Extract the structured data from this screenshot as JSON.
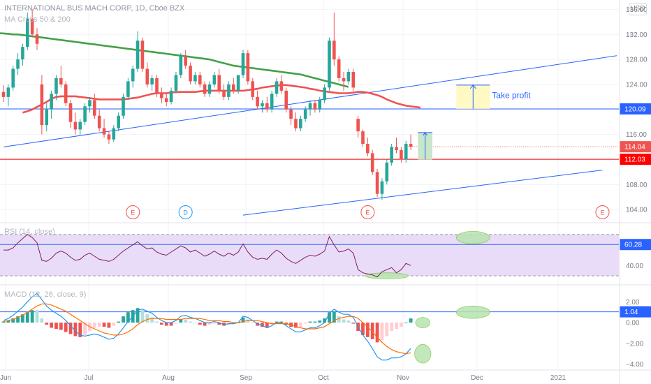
{
  "header": {
    "title": "INTERNATIONAL BUS MACH CORP, 1D, Cboe BZX",
    "ma_indicator": "MA Cross 50 & 200",
    "rsi_indicator": "RSI (14, close)",
    "macd_indicator": "MACD (12, 26, close, 9)",
    "currency_button": "USD"
  },
  "colors": {
    "up": "#26a69a",
    "down": "#ef5350",
    "ma50": "#ef5350",
    "ma200": "#43a047",
    "trend": "#2962ff",
    "rsi_line": "#7e1f5f",
    "rsi_band": "#e9dcf8",
    "macd_line": "#2196f3",
    "signal_line": "#ff6d00",
    "hist_up": "#26a69a",
    "hist_down": "#ef5350",
    "highlight": "#b7e4b0"
  },
  "chart_data": [
    {
      "type": "candlestick",
      "title": "INTERNATIONAL BUS MACH CORP, 1D, Cboe BZX",
      "x": [
        "Jun",
        "Jul",
        "Aug",
        "Sep",
        "Oct",
        "Nov",
        "Dec",
        "2021"
      ],
      "y_ticks": [
        104.0,
        108.0,
        112.0,
        116.0,
        120.0,
        124.0,
        128.0,
        132.0,
        136.0
      ],
      "ylim": [
        102.0,
        137.5
      ],
      "price_labels": [
        {
          "value": 120.09,
          "text": "120.09",
          "color": "#2962ff"
        },
        {
          "value": 114.04,
          "text": "114.04",
          "color": "#ef5350"
        },
        {
          "value": 112.03,
          "text": "112.03",
          "color": "#ff0000"
        }
      ],
      "candles": [
        [
          122.8,
          123.9,
          121.2,
          122.0
        ],
        [
          122.0,
          124.0,
          120.5,
          123.5
        ],
        [
          123.5,
          127.0,
          123.0,
          126.5
        ],
        [
          126.5,
          129.0,
          125.5,
          128.0
        ],
        [
          128.0,
          130.5,
          127.0,
          130.0
        ],
        [
          130.0,
          135.5,
          129.5,
          134.5
        ],
        [
          134.5,
          136.0,
          131.5,
          132.0
        ],
        [
          132.0,
          133.0,
          129.5,
          130.5
        ],
        [
          124.0,
          125.5,
          116.0,
          117.5
        ],
        [
          117.5,
          121.0,
          116.5,
          120.0
        ],
        [
          120.0,
          123.0,
          118.5,
          122.5
        ],
        [
          122.5,
          125.5,
          121.5,
          125.0
        ],
        [
          125.0,
          127.0,
          123.5,
          124.0
        ],
        [
          124.0,
          124.5,
          120.5,
          121.0
        ],
        [
          121.0,
          121.5,
          117.0,
          118.0
        ],
        [
          118.0,
          119.5,
          116.0,
          116.8
        ],
        [
          116.8,
          118.5,
          116.0,
          118.0
        ],
        [
          118.0,
          121.0,
          117.5,
          120.5
        ],
        [
          120.5,
          122.0,
          119.5,
          121.5
        ],
        [
          121.5,
          122.5,
          118.5,
          119.0
        ],
        [
          119.0,
          120.0,
          116.5,
          117.0
        ],
        [
          117.0,
          118.5,
          115.5,
          116.0
        ],
        [
          116.0,
          116.5,
          114.5,
          115.2
        ],
        [
          115.2,
          117.5,
          114.8,
          117.0
        ],
        [
          117.0,
          119.5,
          116.5,
          119.0
        ],
        [
          119.0,
          122.5,
          118.5,
          122.0
        ],
        [
          122.0,
          125.0,
          121.5,
          124.5
        ],
        [
          124.5,
          127.0,
          123.5,
          126.5
        ],
        [
          126.5,
          132.5,
          126.0,
          131.0
        ],
        [
          131.0,
          131.5,
          126.0,
          126.5
        ],
        [
          126.5,
          127.5,
          123.5,
          124.0
        ],
        [
          124.0,
          125.5,
          123.0,
          125.0
        ],
        [
          125.0,
          125.5,
          122.0,
          122.5
        ],
        [
          122.5,
          123.5,
          121.0,
          121.8
        ],
        [
          121.8,
          122.5,
          120.5,
          121.2
        ],
        [
          121.2,
          123.5,
          120.8,
          123.0
        ],
        [
          123.0,
          126.0,
          122.5,
          125.5
        ],
        [
          125.5,
          129.0,
          125.0,
          128.5
        ],
        [
          128.5,
          129.5,
          126.5,
          127.0
        ],
        [
          127.0,
          127.5,
          124.0,
          124.5
        ],
        [
          124.5,
          126.0,
          124.0,
          125.5
        ],
        [
          125.5,
          126.0,
          123.5,
          124.0
        ],
        [
          124.0,
          124.5,
          122.0,
          122.5
        ],
        [
          122.5,
          124.5,
          122.0,
          124.0
        ],
        [
          124.0,
          126.0,
          123.5,
          125.5
        ],
        [
          125.5,
          126.5,
          122.5,
          123.0
        ],
        [
          123.0,
          124.0,
          121.5,
          122.0
        ],
        [
          122.0,
          124.5,
          121.5,
          124.0
        ],
        [
          124.0,
          125.0,
          122.5,
          123.0
        ],
        [
          123.0,
          125.5,
          122.5,
          125.5
        ],
        [
          125.5,
          129.5,
          125.0,
          129.0
        ],
        [
          129.0,
          129.5,
          124.0,
          124.5
        ],
        [
          124.5,
          125.0,
          121.5,
          122.0
        ],
        [
          122.0,
          123.0,
          120.0,
          120.5
        ],
        [
          120.5,
          121.5,
          119.5,
          121.0
        ],
        [
          121.0,
          122.0,
          119.5,
          120.0
        ],
        [
          120.0,
          123.0,
          119.5,
          122.5
        ],
        [
          122.5,
          125.0,
          122.0,
          124.5
        ],
        [
          124.5,
          125.5,
          122.5,
          123.0
        ],
        [
          123.0,
          123.5,
          119.5,
          120.0
        ],
        [
          120.0,
          120.5,
          117.5,
          118.5
        ],
        [
          118.5,
          119.5,
          116.5,
          117.0
        ],
        [
          117.0,
          119.0,
          116.5,
          118.5
        ],
        [
          118.5,
          120.5,
          118.0,
          120.0
        ],
        [
          120.0,
          121.5,
          119.0,
          121.0
        ],
        [
          121.0,
          121.5,
          119.5,
          120.0
        ],
        [
          120.0,
          122.0,
          119.5,
          121.5
        ],
        [
          121.5,
          124.0,
          121.0,
          123.5
        ],
        [
          123.5,
          131.5,
          123.0,
          131.0
        ],
        [
          131.0,
          135.5,
          127.0,
          128.0
        ],
        [
          128.0,
          128.5,
          124.5,
          125.0
        ],
        [
          125.0,
          126.0,
          123.0,
          124.5
        ],
        [
          124.5,
          126.5,
          124.0,
          126.0
        ],
        [
          126.0,
          126.5,
          123.0,
          123.5
        ],
        [
          118.5,
          119.0,
          115.5,
          116.5
        ],
        [
          116.5,
          116.8,
          114.0,
          114.5
        ],
        [
          114.5,
          115.5,
          112.5,
          113.0
        ],
        [
          113.0,
          113.5,
          109.5,
          110.0
        ],
        [
          110.0,
          110.5,
          106.0,
          106.5
        ],
        [
          106.5,
          109.0,
          105.5,
          108.5
        ],
        [
          108.5,
          112.0,
          108.0,
          111.5
        ],
        [
          111.5,
          114.5,
          111.0,
          114.0
        ],
        [
          114.0,
          115.5,
          113.0,
          113.5
        ],
        [
          113.5,
          114.0,
          111.5,
          112.0
        ],
        [
          112.0,
          115.0,
          111.5,
          114.5
        ],
        [
          114.5,
          116.0,
          113.5,
          114.04
        ]
      ],
      "ma50": [
        119.5,
        119.7,
        120.0,
        120.4,
        120.8,
        121.2,
        121.7,
        122.0,
        122.1,
        122.1,
        122.1,
        122.1,
        122.0,
        121.9,
        121.8,
        121.7,
        121.6,
        121.6,
        121.6,
        121.6,
        121.6,
        121.6,
        121.7,
        121.8,
        121.9,
        122.1,
        122.3,
        122.5,
        122.6,
        122.6,
        122.6,
        122.7,
        122.8,
        122.8,
        122.8,
        122.8,
        122.8,
        122.9,
        123.0,
        123.0,
        123.0,
        123.0,
        123.0,
        123.0,
        123.0,
        123.0,
        123.0,
        123.1,
        123.2,
        123.3,
        123.5,
        123.6,
        123.7,
        123.8,
        123.9,
        123.9,
        123.8,
        123.7,
        123.6,
        123.5,
        123.3,
        123.2,
        123.0,
        122.9,
        122.8,
        122.7,
        122.6,
        122.6,
        122.6,
        122.7,
        122.8,
        122.8,
        122.7,
        122.5,
        122.3,
        122.0,
        121.6,
        121.3,
        121.0,
        120.8,
        120.6,
        120.5,
        120.4,
        120.3
      ],
      "ma200": [
        132.2,
        132.1,
        132.0,
        132.0,
        131.9,
        131.8,
        131.7,
        131.6,
        131.5,
        131.4,
        131.3,
        131.2,
        131.1,
        131.0,
        130.9,
        130.8,
        130.7,
        130.6,
        130.5,
        130.4,
        130.3,
        130.2,
        130.1,
        130.0,
        129.9,
        129.8,
        129.7,
        129.6,
        129.5,
        129.4,
        129.3,
        129.2,
        129.1,
        129.0,
        128.9,
        128.8,
        128.7,
        128.6,
        128.5,
        128.4,
        128.3,
        128.2,
        128.1,
        128.0,
        127.8,
        127.6,
        127.4,
        127.2,
        127.0,
        126.9,
        126.8,
        126.7,
        126.6,
        126.5,
        126.4,
        126.3,
        126.2,
        126.1,
        126.0,
        125.9,
        125.8,
        125.7,
        125.6,
        125.4,
        125.2,
        125.0,
        124.8,
        124.6,
        124.4,
        124.2,
        124.0,
        123.8,
        123.6
      ],
      "trendlines": [
        {
          "from": [
            0,
            114.0
          ],
          "to": [
            128,
            128.6
          ]
        },
        {
          "from": [
            50,
            103.1
          ],
          "to": [
            125,
            110.3
          ]
        }
      ],
      "horizontal_lines": [
        {
          "value": 120.09,
          "color": "#2962ff"
        },
        {
          "value": 112.03,
          "color": "#ff0000"
        },
        {
          "value": 114.04,
          "color": "#ef5350",
          "dotted": true
        }
      ],
      "take_profit": {
        "label": "Take profit",
        "from": 120.1,
        "to": 123.9,
        "x0": 94.5,
        "x1": 101.5
      },
      "target_box": {
        "from": 112.0,
        "to": 116.3,
        "x0": 86.5,
        "x1": 89.5
      },
      "events": [
        {
          "x": 27,
          "letter": "E",
          "color": "#ef5350"
        },
        {
          "x": 38,
          "letter": "D",
          "color": "#2196f3"
        },
        {
          "x": 76,
          "letter": "E",
          "color": "#ef5350"
        },
        {
          "x": 125,
          "letter": "E",
          "color": "#ef5350"
        }
      ]
    },
    {
      "type": "line",
      "title": "RSI (14, close)",
      "y_ticks": [
        40.0
      ],
      "ylim": [
        22,
        80
      ],
      "band": [
        30,
        70
      ],
      "label": {
        "value": 60.28,
        "text": "60.28"
      },
      "values": [
        55,
        55,
        57,
        62,
        66,
        70,
        67,
        62,
        45,
        44,
        47,
        52,
        54,
        52,
        48,
        45,
        46,
        50,
        52,
        49,
        46,
        45,
        44,
        46,
        50,
        54,
        57,
        60,
        63,
        59,
        56,
        57,
        53,
        51,
        50,
        53,
        56,
        59,
        57,
        53,
        55,
        52,
        49,
        51,
        54,
        51,
        49,
        52,
        50,
        53,
        61,
        53,
        48,
        46,
        47,
        46,
        51,
        55,
        52,
        47,
        44,
        42,
        45,
        48,
        50,
        49,
        51,
        54,
        68,
        60,
        53,
        54,
        56,
        52,
        36,
        33,
        32,
        31,
        29,
        34,
        36,
        38,
        33,
        36,
        42,
        40
      ],
      "highlights": [
        {
          "x": 98,
          "y": 67,
          "rx": 3.5,
          "ry": 6
        },
        {
          "x": 80,
          "y": 30,
          "rx": 4.5,
          "ry": 3
        }
      ]
    },
    {
      "type": "bar",
      "title": "MACD (12, 26, close, 9)",
      "y_ticks": [
        2.0,
        0.0,
        -2.0,
        -4.0
      ],
      "y_tick_labels": [
        "2.00",
        "0.00",
        "−2.00",
        "−4.00"
      ],
      "ylim": [
        -4.5,
        3.5
      ],
      "label": {
        "value": 1.04,
        "text": "1.04"
      },
      "macd": [
        0.2,
        0.4,
        0.7,
        1.1,
        1.5,
        2.0,
        2.5,
        2.8,
        2.2,
        1.6,
        1.2,
        0.9,
        0.6,
        0.2,
        -0.3,
        -0.8,
        -1.2,
        -1.3,
        -1.2,
        -1.1,
        -1.2,
        -1.4,
        -1.6,
        -1.5,
        -1.1,
        -0.5,
        0.1,
        0.6,
        1.2,
        1.3,
        1.1,
        0.9,
        0.5,
        0.2,
        0.0,
        0.0,
        0.2,
        0.6,
        0.7,
        0.5,
        0.4,
        0.2,
        0.0,
        0.0,
        0.1,
        0.0,
        -0.2,
        -0.1,
        -0.1,
        0.0,
        0.6,
        0.5,
        0.2,
        -0.1,
        -0.3,
        -0.5,
        -0.3,
        0.0,
        0.0,
        -0.3,
        -0.6,
        -0.9,
        -0.9,
        -0.7,
        -0.5,
        -0.5,
        -0.3,
        0.0,
        0.9,
        1.3,
        1.0,
        0.8,
        0.8,
        0.5,
        -0.4,
        -1.2,
        -1.8,
        -2.5,
        -3.3,
        -3.6,
        -3.6,
        -3.4,
        -3.4,
        -3.3,
        -3.0,
        -2.5
      ],
      "signal": [
        0.1,
        0.2,
        0.3,
        0.5,
        0.7,
        1.0,
        1.3,
        1.6,
        1.8,
        1.8,
        1.7,
        1.5,
        1.3,
        1.1,
        0.8,
        0.5,
        0.2,
        -0.1,
        -0.4,
        -0.6,
        -0.8,
        -1.0,
        -1.1,
        -1.2,
        -1.2,
        -1.1,
        -0.9,
        -0.6,
        -0.2,
        0.1,
        0.3,
        0.4,
        0.4,
        0.4,
        0.3,
        0.3,
        0.3,
        0.3,
        0.4,
        0.4,
        0.4,
        0.4,
        0.3,
        0.2,
        0.2,
        0.2,
        0.1,
        0.1,
        0.0,
        0.0,
        0.1,
        0.2,
        0.2,
        0.2,
        0.1,
        0.0,
        -0.1,
        -0.1,
        -0.1,
        -0.1,
        -0.2,
        -0.4,
        -0.5,
        -0.6,
        -0.6,
        -0.6,
        -0.5,
        -0.4,
        -0.1,
        0.2,
        0.4,
        0.5,
        0.6,
        0.6,
        0.4,
        0.0,
        -0.4,
        -0.9,
        -1.4,
        -1.9,
        -2.3,
        -2.6,
        -2.8,
        -2.9,
        -3.0,
        -2.9
      ],
      "highlights": [
        {
          "x": 98,
          "y": 1.0,
          "rx": 3.5,
          "ry": 0.6
        },
        {
          "x": 87.5,
          "y": 0.0,
          "rx": 1.5,
          "ry": 0.5
        },
        {
          "x": 87.5,
          "y": -3.0,
          "rx": 1.7,
          "ry": 0.9
        }
      ]
    }
  ]
}
